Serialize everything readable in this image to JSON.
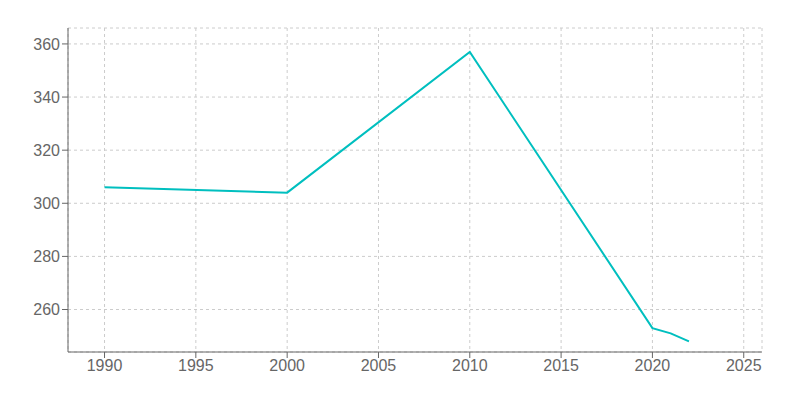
{
  "chart_data": {
    "type": "line",
    "x": [
      1990,
      2000,
      2010,
      2020,
      2021,
      2022
    ],
    "values": [
      306,
      304,
      357,
      253,
      251,
      248
    ],
    "color": "#00BFBF",
    "xlim": [
      1988,
      2026
    ],
    "xticks": [
      1990,
      1995,
      2000,
      2005,
      2010,
      2015,
      2020,
      2025
    ],
    "ylim": [
      244,
      366
    ],
    "yticks": [
      260,
      280,
      300,
      320,
      340,
      360
    ],
    "grid": true
  }
}
